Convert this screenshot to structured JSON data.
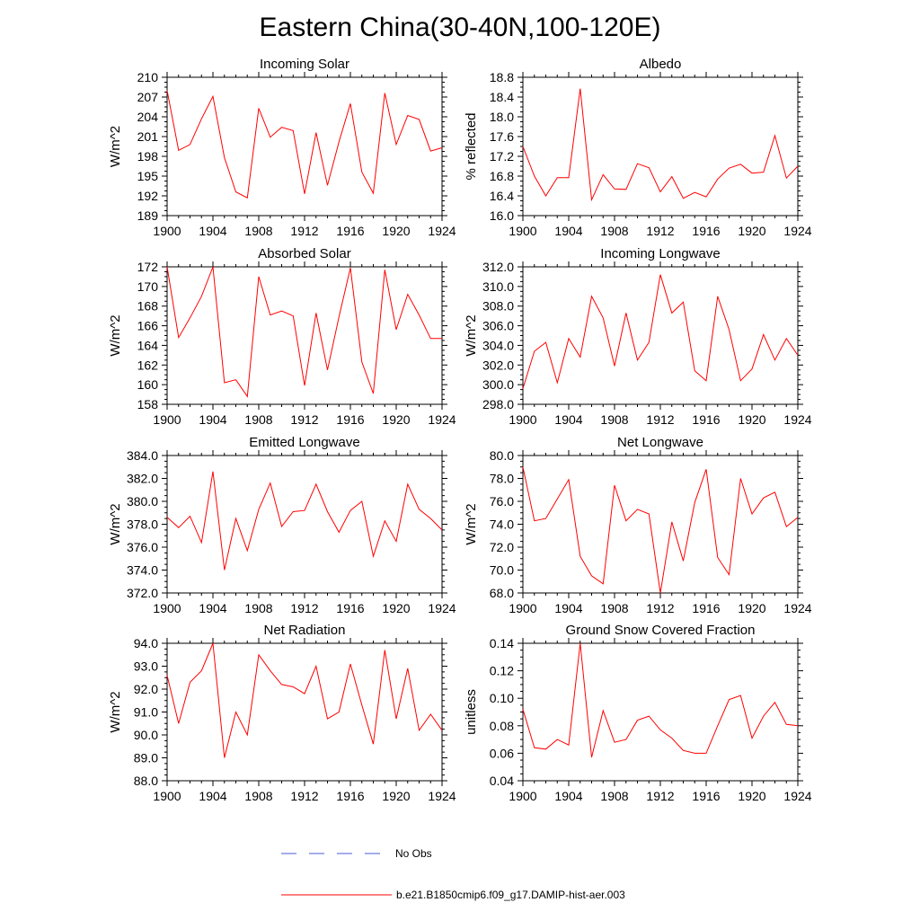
{
  "figure": {
    "title": "Eastern China(30-40N,100-120E)"
  },
  "legend": {
    "items": [
      {
        "label": "No Obs",
        "color": "#4a5bd8",
        "style": "dashed"
      },
      {
        "label": "b.e21.B1850cmip6.f09_g17.DAMIP-hist-aer.003",
        "color": "#ff0000",
        "style": "solid"
      }
    ]
  },
  "chart_data": [
    {
      "type": "line",
      "title": "Incoming Solar",
      "ylabel": "W/m^2",
      "xlabel": "",
      "xlim": [
        1900,
        1924
      ],
      "ylim": [
        189,
        210
      ],
      "xticks": [
        1900,
        1904,
        1908,
        1912,
        1916,
        1920,
        1924
      ],
      "yticks": [
        "189",
        "192",
        "195",
        "198",
        "201",
        "204",
        "207",
        "210"
      ],
      "x": [
        1900,
        1901,
        1902,
        1903,
        1904,
        1905,
        1906,
        1907,
        1908,
        1909,
        1910,
        1911,
        1912,
        1913,
        1914,
        1915,
        1916,
        1917,
        1918,
        1919,
        1920,
        1921,
        1922,
        1923,
        1924
      ],
      "series": [
        {
          "name": "b.e21.B1850cmip6.f09_g17.DAMIP-hist-aer.003",
          "color": "#ff0000",
          "values": [
            208.0,
            198.9,
            199.8,
            203.7,
            207.1,
            197.8,
            192.6,
            191.7,
            205.3,
            200.9,
            202.4,
            201.9,
            192.3,
            201.6,
            193.6,
            200.2,
            206.0,
            195.6,
            192.4,
            207.6,
            199.8,
            204.2,
            203.6,
            198.8,
            199.3
          ]
        }
      ]
    },
    {
      "type": "line",
      "title": "Albedo",
      "ylabel": "% reflected",
      "xlabel": "",
      "xlim": [
        1900,
        1924
      ],
      "ylim": [
        16.0,
        18.8
      ],
      "xticks": [
        1900,
        1904,
        1908,
        1912,
        1916,
        1920,
        1924
      ],
      "yticks": [
        "16.0",
        "16.4",
        "16.8",
        "17.2",
        "17.6",
        "18.0",
        "18.4",
        "18.8"
      ],
      "x": [
        1900,
        1901,
        1902,
        1903,
        1904,
        1905,
        1906,
        1907,
        1908,
        1909,
        1910,
        1911,
        1912,
        1913,
        1914,
        1915,
        1916,
        1917,
        1918,
        1919,
        1920,
        1921,
        1922,
        1923,
        1924
      ],
      "series": [
        {
          "name": "b.e21.B1850cmip6.f09_g17.DAMIP-hist-aer.003",
          "color": "#ff0000",
          "values": [
            17.4,
            16.8,
            16.4,
            16.77,
            16.77,
            18.57,
            16.32,
            16.83,
            16.54,
            16.53,
            17.05,
            16.97,
            16.48,
            16.79,
            16.35,
            16.47,
            16.38,
            16.74,
            16.96,
            17.04,
            16.86,
            16.88,
            17.62,
            16.76,
            17.0
          ]
        }
      ]
    },
    {
      "type": "line",
      "title": "Absorbed Solar",
      "ylabel": "W/m^2",
      "xlabel": "",
      "xlim": [
        1900,
        1924
      ],
      "ylim": [
        158,
        172
      ],
      "xticks": [
        1900,
        1904,
        1908,
        1912,
        1916,
        1920,
        1924
      ],
      "yticks": [
        "158",
        "160",
        "162",
        "164",
        "166",
        "168",
        "170",
        "172"
      ],
      "x": [
        1900,
        1901,
        1902,
        1903,
        1904,
        1905,
        1906,
        1907,
        1908,
        1909,
        1910,
        1911,
        1912,
        1913,
        1914,
        1915,
        1916,
        1917,
        1918,
        1919,
        1920,
        1921,
        1922,
        1923,
        1924
      ],
      "series": [
        {
          "name": "b.e21.B1850cmip6.f09_g17.DAMIP-hist-aer.003",
          "color": "#ff0000",
          "values": [
            172.0,
            164.8,
            166.8,
            169.0,
            172.0,
            160.2,
            160.5,
            158.8,
            171.0,
            167.1,
            167.5,
            167.0,
            159.9,
            167.3,
            161.5,
            166.9,
            171.9,
            162.3,
            159.1,
            171.7,
            165.6,
            169.2,
            167.1,
            164.7,
            164.7
          ]
        }
      ]
    },
    {
      "type": "line",
      "title": "Incoming Longwave",
      "ylabel": "W/m^2",
      "xlabel": "",
      "xlim": [
        1900,
        1924
      ],
      "ylim": [
        298.0,
        312.0
      ],
      "xticks": [
        1900,
        1904,
        1908,
        1912,
        1916,
        1920,
        1924
      ],
      "yticks": [
        "298.0",
        "300.0",
        "302.0",
        "304.0",
        "306.0",
        "308.0",
        "310.0",
        "312.0"
      ],
      "x": [
        1900,
        1901,
        1902,
        1903,
        1904,
        1905,
        1906,
        1907,
        1908,
        1909,
        1910,
        1911,
        1912,
        1913,
        1914,
        1915,
        1916,
        1917,
        1918,
        1919,
        1920,
        1921,
        1922,
        1923,
        1924
      ],
      "series": [
        {
          "name": "b.e21.B1850cmip6.f09_g17.DAMIP-hist-aer.003",
          "color": "#ff0000",
          "values": [
            299.6,
            303.4,
            304.3,
            300.2,
            304.7,
            302.8,
            309.0,
            306.8,
            301.9,
            307.3,
            302.5,
            304.3,
            311.2,
            307.3,
            308.4,
            301.4,
            300.4,
            309.0,
            305.6,
            300.4,
            301.6,
            305.1,
            302.5,
            304.7,
            303.0
          ]
        }
      ]
    },
    {
      "type": "line",
      "title": "Emitted Longwave",
      "ylabel": "W/m^2",
      "xlabel": "",
      "xlim": [
        1900,
        1924
      ],
      "ylim": [
        372.0,
        384.0
      ],
      "xticks": [
        1900,
        1904,
        1908,
        1912,
        1916,
        1920,
        1924
      ],
      "yticks": [
        "372.0",
        "374.0",
        "376.0",
        "378.0",
        "380.0",
        "382.0",
        "384.0"
      ],
      "x": [
        1900,
        1901,
        1902,
        1903,
        1904,
        1905,
        1906,
        1907,
        1908,
        1909,
        1910,
        1911,
        1912,
        1913,
        1914,
        1915,
        1916,
        1917,
        1918,
        1919,
        1920,
        1921,
        1922,
        1923,
        1924
      ],
      "series": [
        {
          "name": "b.e21.B1850cmip6.f09_g17.DAMIP-hist-aer.003",
          "color": "#ff0000",
          "values": [
            378.6,
            377.7,
            378.7,
            376.4,
            382.6,
            374.0,
            378.5,
            375.7,
            379.3,
            381.6,
            377.8,
            379.1,
            379.2,
            381.5,
            379.1,
            377.3,
            379.2,
            380.0,
            375.2,
            378.3,
            376.5,
            381.5,
            379.3,
            378.5,
            377.5
          ]
        }
      ]
    },
    {
      "type": "line",
      "title": "Net Longwave",
      "ylabel": "W/m^2",
      "xlabel": "",
      "xlim": [
        1900,
        1924
      ],
      "ylim": [
        68.0,
        80.0
      ],
      "xticks": [
        1900,
        1904,
        1908,
        1912,
        1916,
        1920,
        1924
      ],
      "yticks": [
        "68.0",
        "70.0",
        "72.0",
        "74.0",
        "76.0",
        "78.0",
        "80.0"
      ],
      "x": [
        1900,
        1901,
        1902,
        1903,
        1904,
        1905,
        1906,
        1907,
        1908,
        1909,
        1910,
        1911,
        1912,
        1913,
        1914,
        1915,
        1916,
        1917,
        1918,
        1919,
        1920,
        1921,
        1922,
        1923,
        1924
      ],
      "series": [
        {
          "name": "b.e21.B1850cmip6.f09_g17.DAMIP-hist-aer.003",
          "color": "#ff0000",
          "values": [
            79.0,
            74.3,
            74.5,
            76.2,
            77.9,
            71.2,
            69.5,
            68.8,
            77.4,
            74.3,
            75.3,
            74.9,
            68.0,
            74.2,
            70.8,
            75.9,
            78.8,
            71.1,
            69.6,
            78.0,
            74.9,
            76.3,
            76.8,
            73.8,
            74.6
          ]
        }
      ]
    },
    {
      "type": "line",
      "title": "Net Radiation",
      "ylabel": "W/m^2",
      "xlabel": "",
      "xlim": [
        1900,
        1924
      ],
      "ylim": [
        88.0,
        94.0
      ],
      "xticks": [
        1900,
        1904,
        1908,
        1912,
        1916,
        1920,
        1924
      ],
      "yticks": [
        "88.0",
        "89.0",
        "90.0",
        "91.0",
        "92.0",
        "93.0",
        "94.0"
      ],
      "x": [
        1900,
        1901,
        1902,
        1903,
        1904,
        1905,
        1906,
        1907,
        1908,
        1909,
        1910,
        1911,
        1912,
        1913,
        1914,
        1915,
        1916,
        1917,
        1918,
        1919,
        1920,
        1921,
        1922,
        1923,
        1924
      ],
      "series": [
        {
          "name": "b.e21.B1850cmip6.f09_g17.DAMIP-hist-aer.003",
          "color": "#ff0000",
          "values": [
            92.6,
            90.5,
            92.3,
            92.8,
            94.0,
            89.0,
            91.0,
            90.0,
            93.5,
            92.8,
            92.2,
            92.1,
            91.8,
            93.0,
            90.7,
            91.0,
            93.1,
            91.3,
            89.6,
            93.7,
            90.7,
            92.9,
            90.2,
            90.9,
            90.2
          ]
        }
      ]
    },
    {
      "type": "line",
      "title": "Ground Snow Covered Fraction",
      "ylabel": "unitless",
      "xlabel": "",
      "xlim": [
        1900,
        1924
      ],
      "ylim": [
        0.04,
        0.14
      ],
      "xticks": [
        1900,
        1904,
        1908,
        1912,
        1916,
        1920,
        1924
      ],
      "yticks": [
        "0.04",
        "0.06",
        "0.08",
        "0.10",
        "0.12",
        "0.14"
      ],
      "x": [
        1900,
        1901,
        1902,
        1903,
        1904,
        1905,
        1906,
        1907,
        1908,
        1909,
        1910,
        1911,
        1912,
        1913,
        1914,
        1915,
        1916,
        1917,
        1918,
        1919,
        1920,
        1921,
        1922,
        1923,
        1924
      ],
      "series": [
        {
          "name": "b.e21.B1850cmip6.f09_g17.DAMIP-hist-aer.003",
          "color": "#ff0000",
          "values": [
            0.092,
            0.064,
            0.063,
            0.07,
            0.066,
            0.14,
            0.057,
            0.091,
            0.068,
            0.07,
            0.084,
            0.087,
            0.077,
            0.071,
            0.062,
            0.06,
            0.06,
            0.08,
            0.099,
            0.102,
            0.071,
            0.087,
            0.097,
            0.081,
            0.08
          ]
        }
      ]
    }
  ]
}
